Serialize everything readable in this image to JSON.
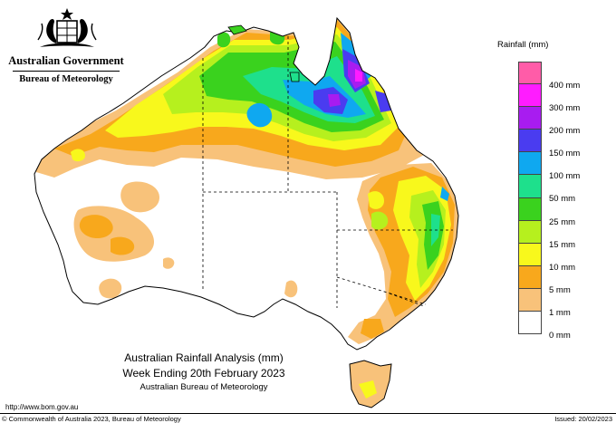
{
  "header": {
    "government": "Australian Government",
    "department": "Bureau of Meteorology"
  },
  "map": {
    "type": "rainfall analysis map",
    "region": "Australia",
    "highest_rainfall_region": "north-east Queensland (Cape York / tropical coast)",
    "land_color": "#ffffff",
    "state_border_style": "dashed"
  },
  "legend": {
    "title": "Rainfall (mm)",
    "items": [
      {
        "label": "400 mm",
        "color": "#ff5ca8"
      },
      {
        "label": "300 mm",
        "color": "#ff1cff"
      },
      {
        "label": "200 mm",
        "color": "#a81cf0"
      },
      {
        "label": "150 mm",
        "color": "#4a3cf0"
      },
      {
        "label": "100 mm",
        "color": "#0fa8f0"
      },
      {
        "label": "50 mm",
        "color": "#1ee08c"
      },
      {
        "label": "25 mm",
        "color": "#3ad21e"
      },
      {
        "label": "15 mm",
        "color": "#b6f01e"
      },
      {
        "label": "10 mm",
        "color": "#f8f81c"
      },
      {
        "label": "5 mm",
        "color": "#f8a81c"
      },
      {
        "label": "1 mm",
        "color": "#f8c27a"
      },
      {
        "label": "0 mm",
        "color": "#ffffff"
      }
    ]
  },
  "caption": {
    "line1": "Australian Rainfall Analysis (mm)",
    "line2": "Week Ending 20th February 2023",
    "line3": "Australian Bureau of Meteorology"
  },
  "footer": {
    "url": "http://www.bom.gov.au",
    "copyright": "© Commonwealth of Australia 2023, Bureau of Meteorology",
    "issued": "Issued: 20/02/2023"
  }
}
